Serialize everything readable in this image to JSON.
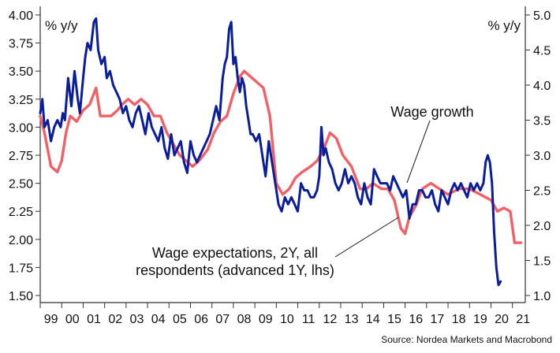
{
  "chart_data": {
    "type": "line",
    "left_axis": {
      "label": "% y/y",
      "ylim": [
        1.5,
        4.0
      ],
      "ticks": [
        "4.00",
        "3.75",
        "3.50",
        "3.25",
        "3.00",
        "2.75",
        "2.50",
        "2.25",
        "2.00",
        "1.75",
        "1.50"
      ]
    },
    "right_axis": {
      "label": "% y/y",
      "ylim": [
        1.0,
        5.0
      ],
      "ticks": [
        "5.0",
        "4.5",
        "4.0",
        "3.5",
        "3.0",
        "2.5",
        "2.0",
        "1.5",
        "1.0"
      ]
    },
    "x_ticks": [
      "99",
      "00",
      "01",
      "02",
      "03",
      "04",
      "05",
      "06",
      "07",
      "08",
      "09",
      "10",
      "11",
      "12",
      "13",
      "14",
      "15",
      "16",
      "17",
      "18",
      "19",
      "20",
      "21"
    ],
    "x_range": [
      1999.0,
      2021.6
    ],
    "grid": false,
    "legend": "none",
    "annotations": [
      {
        "lines": [
          "Wage growth"
        ]
      },
      {
        "lines": [
          "Wage expectations, 2Y, all",
          "respondents (advanced 1Y, lhs)"
        ]
      }
    ],
    "source": "Source: Nordea Markets and Macrobond",
    "series": [
      {
        "axis": "left",
        "color": "#f26066",
        "x": [
          1999.0,
          1999.2,
          1999.5,
          1999.8,
          2000.0,
          2000.2,
          2000.4,
          2000.7,
          2001.0,
          2001.3,
          2001.6,
          2001.8,
          2002.0,
          2002.3,
          2002.6,
          2002.8,
          2003.1,
          2003.4,
          2003.7,
          2004.0,
          2004.3,
          2004.6,
          2004.9,
          2005.2,
          2005.5,
          2005.8,
          2006.1,
          2006.4,
          2006.8,
          2007.1,
          2007.4,
          2007.7,
          2008.0,
          2008.3,
          2008.5,
          2008.8,
          2009.1,
          2009.4,
          2009.7,
          2010.0,
          2010.3,
          2010.6,
          2010.9,
          2011.2,
          2011.6,
          2011.9,
          2012.2,
          2012.5,
          2012.8,
          2013.1,
          2013.5,
          2013.9,
          2014.2,
          2014.5,
          2014.9,
          2015.2,
          2015.5,
          2015.8,
          2016.0,
          2016.2,
          2016.5,
          2016.8,
          2017.2,
          2017.6,
          2018.0,
          2018.5,
          2019.0,
          2019.5,
          2020.0,
          2020.3,
          2020.6,
          2020.9,
          2021.1,
          2021.4
        ],
        "values": [
          3.1,
          2.95,
          2.65,
          2.6,
          2.7,
          2.95,
          3.1,
          3.05,
          3.15,
          3.2,
          3.35,
          3.1,
          3.1,
          3.1,
          3.15,
          3.2,
          3.25,
          3.2,
          3.25,
          3.2,
          3.1,
          3.1,
          2.95,
          2.85,
          2.75,
          2.7,
          2.65,
          2.7,
          2.8,
          2.95,
          3.05,
          3.1,
          3.3,
          3.45,
          3.5,
          3.45,
          3.4,
          3.35,
          3.1,
          2.5,
          2.4,
          2.45,
          2.55,
          2.6,
          2.65,
          2.7,
          2.8,
          2.95,
          2.9,
          2.75,
          2.65,
          2.45,
          2.45,
          2.5,
          2.45,
          2.45,
          2.35,
          2.1,
          2.05,
          2.2,
          2.3,
          2.45,
          2.5,
          2.45,
          2.4,
          2.45,
          2.45,
          2.4,
          2.35,
          2.25,
          2.28,
          2.25,
          1.97,
          1.97
        ]
      },
      {
        "axis": "right",
        "color": "#0a1d9b",
        "x": [
          1999.0,
          1999.1,
          1999.2,
          1999.35,
          1999.5,
          1999.65,
          1999.8,
          1999.95,
          2000.05,
          2000.15,
          2000.3,
          2000.45,
          2000.6,
          2000.75,
          2000.85,
          2001.0,
          2001.1,
          2001.2,
          2001.35,
          2001.5,
          2001.6,
          2001.7,
          2001.85,
          2002.0,
          2002.1,
          2002.25,
          2002.4,
          2002.55,
          2002.7,
          2002.85,
          2003.0,
          2003.15,
          2003.3,
          2003.45,
          2003.6,
          2003.75,
          2003.9,
          2004.05,
          2004.2,
          2004.35,
          2004.5,
          2004.65,
          2004.8,
          2004.95,
          2005.1,
          2005.25,
          2005.4,
          2005.55,
          2005.7,
          2005.85,
          2006.0,
          2006.15,
          2006.3,
          2006.45,
          2006.6,
          2006.75,
          2006.9,
          2007.05,
          2007.2,
          2007.35,
          2007.5,
          2007.6,
          2007.7,
          2007.8,
          2007.9,
          2008.0,
          2008.1,
          2008.2,
          2008.3,
          2008.4,
          2008.5,
          2008.6,
          2008.7,
          2008.8,
          2008.9,
          2009.05,
          2009.2,
          2009.35,
          2009.5,
          2009.65,
          2009.8,
          2009.95,
          2010.1,
          2010.25,
          2010.4,
          2010.55,
          2010.7,
          2010.85,
          2011.0,
          2011.15,
          2011.3,
          2011.45,
          2011.6,
          2011.75,
          2011.9,
          2012.0,
          2012.1,
          2012.2,
          2012.3,
          2012.45,
          2012.6,
          2012.75,
          2012.9,
          2013.05,
          2013.2,
          2013.35,
          2013.5,
          2013.65,
          2013.8,
          2013.95,
          2014.1,
          2014.25,
          2014.4,
          2014.55,
          2014.7,
          2014.85,
          2015.0,
          2015.15,
          2015.3,
          2015.45,
          2015.6,
          2015.75,
          2015.9,
          2016.05,
          2016.2,
          2016.35,
          2016.5,
          2016.65,
          2016.8,
          2016.95,
          2017.1,
          2017.25,
          2017.4,
          2017.55,
          2017.7,
          2017.85,
          2018.0,
          2018.15,
          2018.3,
          2018.45,
          2018.6,
          2018.75,
          2018.9,
          2019.05,
          2019.2,
          2019.35,
          2019.5,
          2019.65,
          2019.75,
          2019.85,
          2019.95,
          2020.05,
          2020.15,
          2020.25,
          2020.35,
          2020.45
        ],
        "values": [
          3.6,
          3.8,
          3.4,
          3.5,
          3.2,
          3.4,
          3.5,
          3.4,
          3.6,
          3.5,
          4.1,
          3.7,
          4.2,
          3.8,
          3.6,
          4.1,
          4.4,
          4.6,
          4.5,
          4.9,
          4.95,
          4.5,
          4.3,
          4.4,
          4.1,
          4.2,
          4.0,
          3.9,
          3.8,
          3.6,
          3.7,
          3.5,
          3.4,
          3.6,
          3.7,
          3.5,
          3.3,
          3.6,
          3.4,
          3.3,
          3.2,
          3.4,
          3.1,
          2.95,
          3.3,
          3.0,
          3.1,
          3.2,
          2.9,
          2.75,
          3.2,
          3.0,
          2.9,
          3.0,
          3.1,
          3.2,
          3.3,
          3.5,
          3.7,
          3.5,
          4.1,
          4.3,
          4.4,
          4.8,
          4.9,
          4.3,
          4.4,
          4.1,
          3.9,
          4.1,
          4.0,
          3.7,
          3.5,
          3.3,
          3.3,
          3.2,
          3.3,
          3.0,
          2.7,
          3.2,
          2.9,
          2.6,
          2.3,
          2.2,
          2.4,
          2.3,
          2.4,
          2.3,
          2.2,
          2.6,
          2.5,
          2.5,
          2.4,
          2.4,
          2.5,
          2.7,
          3.4,
          3.0,
          3.1,
          2.9,
          2.8,
          2.6,
          2.5,
          2.6,
          2.8,
          2.6,
          2.7,
          2.6,
          2.4,
          2.3,
          2.6,
          2.4,
          2.3,
          2.8,
          2.7,
          2.6,
          2.6,
          2.6,
          2.5,
          2.7,
          2.6,
          2.5,
          2.4,
          2.5,
          2.1,
          2.3,
          2.3,
          2.5,
          2.5,
          2.4,
          2.4,
          2.5,
          2.3,
          2.2,
          2.5,
          2.4,
          2.3,
          2.5,
          2.6,
          2.5,
          2.6,
          2.5,
          2.4,
          2.6,
          2.5,
          2.6,
          2.5,
          2.6,
          2.9,
          3.0,
          2.9,
          2.6,
          1.9,
          1.4,
          1.15,
          1.2
        ]
      }
    ]
  }
}
